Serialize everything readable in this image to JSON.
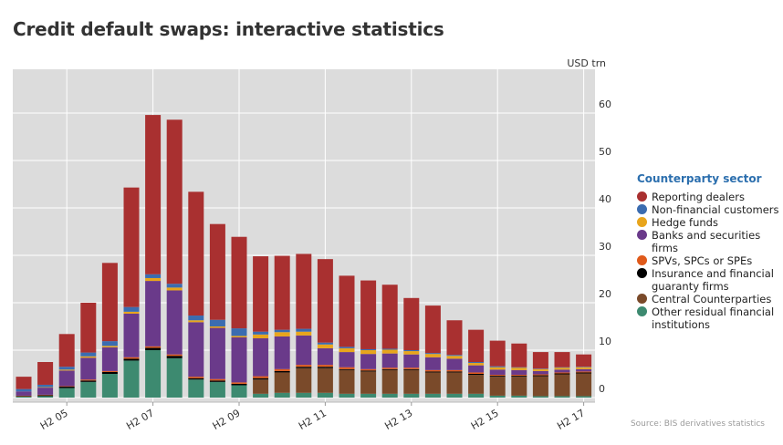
{
  "page": {
    "title": "Credit default swaps: interactive statistics"
  },
  "source": "Source: BIS derivatives statistics",
  "chart_data": {
    "type": "bar",
    "stacked": true,
    "title": "Credit default swaps: interactive statistics",
    "unit_label": "USD trn",
    "ylim": [
      0,
      70
    ],
    "yticks": [
      0,
      10,
      20,
      30,
      40,
      50,
      60
    ],
    "grid": true,
    "categories": [
      "H2 04",
      "H1 05",
      "H2 05",
      "H1 06",
      "H2 06",
      "H1 07",
      "H2 07",
      "H1 08",
      "H2 08",
      "H1 09",
      "H2 09",
      "H1 10",
      "H2 10",
      "H1 11",
      "H2 11",
      "H1 12",
      "H2 12",
      "H1 13",
      "H2 13",
      "H1 14",
      "H2 14",
      "H1 15",
      "H2 15",
      "H1 16",
      "H2 16",
      "H1 17",
      "H2 17"
    ],
    "xtick_labels": [
      {
        "index": 2,
        "label": "H2 05"
      },
      {
        "index": 6,
        "label": "H2 07"
      },
      {
        "index": 10,
        "label": "H2 09"
      },
      {
        "index": 14,
        "label": "H2 11"
      },
      {
        "index": 18,
        "label": "H2 13"
      },
      {
        "index": 22,
        "label": "H2 15"
      },
      {
        "index": 26,
        "label": "H2 17"
      }
    ],
    "legend_title": "Counterparty sector",
    "legend_position": "right",
    "series": [
      {
        "name": "Other residual financial institutions",
        "color": "#3d8a70",
        "values": [
          0.2,
          0.3,
          2.0,
          3.3,
          5.0,
          7.8,
          10.0,
          8.3,
          3.8,
          3.3,
          2.6,
          0.8,
          1.0,
          1.0,
          1.0,
          0.8,
          0.8,
          0.8,
          0.8,
          0.8,
          0.8,
          0.8,
          0.4,
          0.4,
          0.3,
          0.3,
          0.3
        ]
      },
      {
        "name": "Central Counterparties",
        "color": "#7a4a2a",
        "values": [
          0,
          0,
          0,
          0,
          0,
          0,
          0,
          0,
          0,
          0,
          0,
          3.0,
          4.3,
          5.2,
          5.2,
          5.0,
          4.7,
          5.0,
          5.0,
          4.5,
          4.5,
          4.0,
          4.0,
          4.0,
          4.2,
          4.6,
          4.8
        ]
      },
      {
        "name": "Insurance and financial guaranty firms",
        "color": "#000000",
        "values": [
          0.1,
          0.2,
          0.3,
          0.3,
          0.4,
          0.4,
          0.5,
          0.5,
          0.3,
          0.3,
          0.3,
          0.3,
          0.3,
          0.3,
          0.3,
          0.2,
          0.2,
          0.2,
          0.2,
          0.2,
          0.2,
          0.2,
          0.2,
          0.2,
          0.2,
          0.2,
          0.2
        ]
      },
      {
        "name": "SPVs, SPCs or SPEs",
        "color": "#e05a1a",
        "values": [
          0.1,
          0.1,
          0.1,
          0.2,
          0.2,
          0.3,
          0.3,
          0.3,
          0.3,
          0.3,
          0.3,
          0.4,
          0.4,
          0.4,
          0.4,
          0.4,
          0.3,
          0.3,
          0.3,
          0.3,
          0.3,
          0.3,
          0.2,
          0.2,
          0.2,
          0.2,
          0.2
        ]
      },
      {
        "name": "Banks and securities firms",
        "color": "#6a3a8a",
        "values": [
          0.9,
          1.5,
          3.3,
          4.6,
          5.0,
          9.2,
          13.8,
          13.5,
          11.5,
          10.8,
          9.5,
          8.0,
          6.9,
          6.2,
          3.5,
          3.2,
          3.2,
          3.0,
          2.8,
          2.7,
          2.4,
          1.5,
          1.1,
          1.0,
          0.7,
          0.6,
          0.5
        ]
      },
      {
        "name": "Hedge funds",
        "color": "#e8a51c",
        "values": [
          0,
          0.1,
          0.2,
          0.3,
          0.3,
          0.4,
          0.6,
          0.6,
          0.4,
          0.3,
          0.3,
          0.8,
          0.9,
          0.8,
          0.8,
          0.8,
          0.8,
          0.8,
          0.7,
          0.7,
          0.6,
          0.5,
          0.5,
          0.5,
          0.4,
          0.4,
          0.4
        ]
      },
      {
        "name": "Non-financial customers",
        "color": "#3b6cb0",
        "values": [
          0.5,
          0.5,
          0.6,
          0.8,
          1.0,
          1.0,
          0.8,
          0.8,
          1.0,
          1.4,
          1.6,
          0.6,
          0.5,
          0.6,
          0.4,
          0.3,
          0.2,
          0.2,
          0.2,
          0.2,
          0.2,
          0.2,
          0.2,
          0.1,
          0.1,
          0.1,
          0.1
        ]
      },
      {
        "name": "Reporting dealers",
        "color": "#a93030",
        "values": [
          2.6,
          4.8,
          6.9,
          10.5,
          16.5,
          25.2,
          33.6,
          34.6,
          26.1,
          20.2,
          19.3,
          15.9,
          15.6,
          15.8,
          17.6,
          15.0,
          14.5,
          13.5,
          11.0,
          10.0,
          7.3,
          6.8,
          5.4,
          5.0,
          3.5,
          3.2,
          2.6
        ]
      }
    ]
  }
}
